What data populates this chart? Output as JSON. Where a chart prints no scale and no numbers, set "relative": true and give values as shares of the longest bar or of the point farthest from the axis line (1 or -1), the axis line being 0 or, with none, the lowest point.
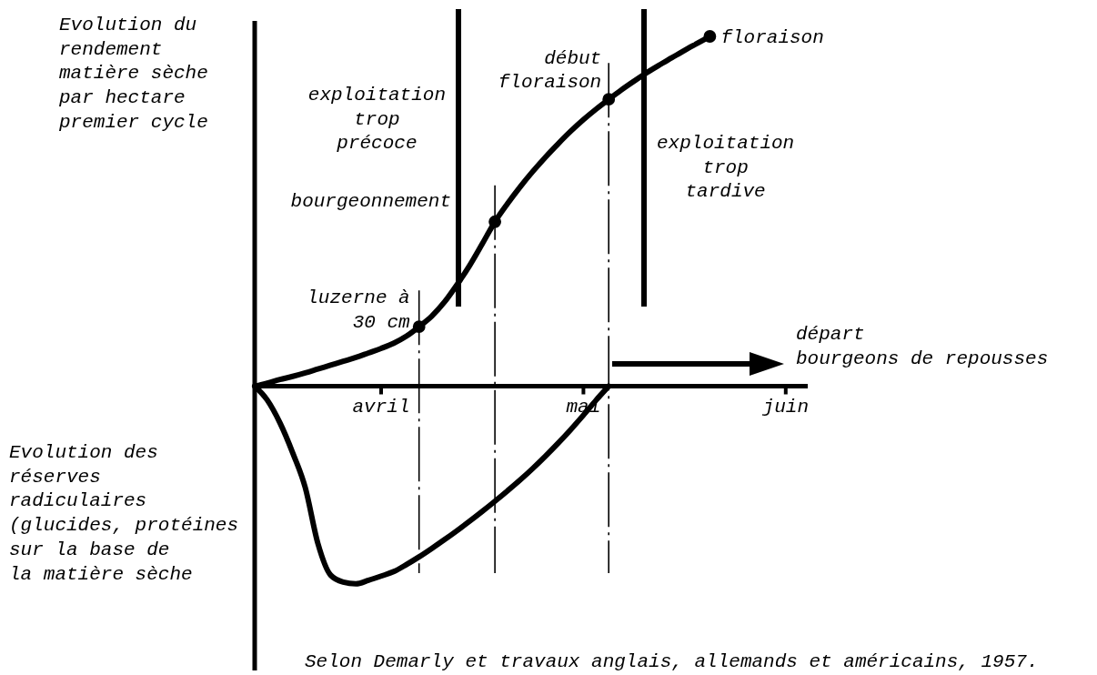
{
  "chart_data": {
    "type": "line",
    "relative": true,
    "categories": [
      null,
      null,
      null,
      null,
      null,
      null,
      null,
      null,
      null,
      null,
      "avril",
      null,
      null,
      null,
      null,
      null,
      null,
      null,
      null,
      null,
      null,
      null,
      null,
      null,
      null,
      null,
      "mai",
      null,
      null,
      null,
      null,
      null,
      null,
      null,
      null,
      null,
      null,
      null,
      null,
      null,
      null,
      null,
      "juin",
      null
    ],
    "series": [
      {
        "color": "#000000",
        "values": [
          0,
          0.009,
          0.019,
          0.028,
          0.038,
          0.049,
          0.06,
          0.071,
          0.082,
          0.095,
          0.108,
          0.123,
          0.143,
          0.17,
          0.2,
          0.24,
          0.29,
          0.345,
          0.407,
          0.47,
          0.522,
          0.57,
          0.614,
          0.655,
          0.693,
          0.729,
          0.762,
          0.792,
          0.82,
          0.847,
          0.872,
          0.896,
          0.918,
          0.939,
          0.96,
          0.98,
          1,
          null,
          null,
          null,
          null,
          null,
          null,
          null
        ]
      },
      {
        "color": "#000000",
        "values": [
          0,
          -0.04,
          -0.105,
          -0.19,
          -0.29,
          -0.45,
          -0.54,
          -0.56,
          -0.565,
          -0.555,
          -0.543,
          -0.53,
          -0.51,
          -0.488,
          -0.464,
          -0.439,
          -0.413,
          -0.386,
          -0.358,
          -0.329,
          -0.299,
          -0.268,
          -0.235,
          -0.2,
          -0.163,
          -0.124,
          -0.083,
          -0.04,
          0,
          null,
          null,
          null,
          null,
          null,
          null,
          null,
          null,
          null,
          null,
          null,
          null,
          null,
          null,
          null
        ]
      },
      {
        "type": "scatter",
        "marker": "circle",
        "color": "#000000",
        "values": [
          null,
          null,
          null,
          null,
          null,
          null,
          null,
          null,
          null,
          null,
          null,
          null,
          null,
          0.17,
          null,
          null,
          null,
          null,
          null,
          0.47,
          null,
          null,
          null,
          null,
          null,
          null,
          null,
          null,
          0.82,
          null,
          null,
          null,
          null,
          null,
          null,
          null,
          1,
          null,
          null,
          null,
          null,
          null,
          null,
          null
        ]
      }
    ],
    "annotations": [
      "Evolution du\nrendement\nmatière sèche\npar hectare\npremier cycle",
      "Evolution des\nréserves\nradiculaires\n(glucides, protéines\nsur la base de\nla matière sèche",
      "exploitation\ntrop\nprécoce",
      "exploitation\ntrop\ntardive",
      "luzerne à\n30 cm",
      "bourgeonnement",
      "début\nfloraison",
      "floraison",
      "départ\nbourgeons de repousses",
      "Selon Demarly et travaux anglais, allemands et américains, 1957."
    ]
  }
}
